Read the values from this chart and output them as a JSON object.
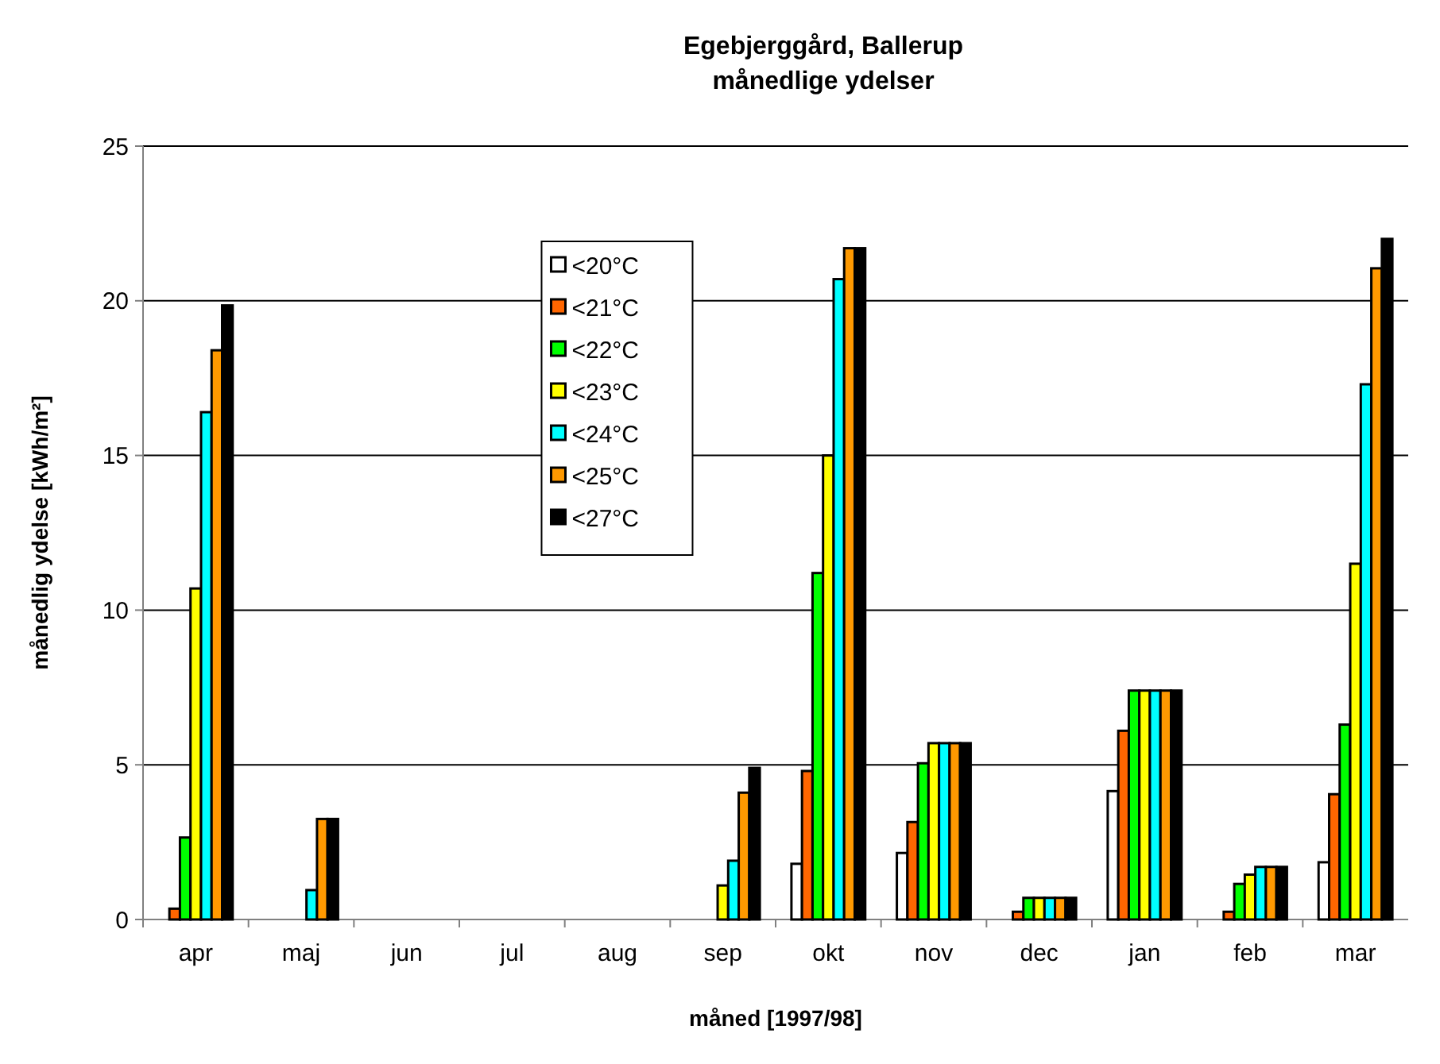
{
  "chart_data": {
    "type": "bar",
    "title": "Egebjerggård, Ballerup\nmånedlige ydelser",
    "xlabel": "måned [1997/98]",
    "ylabel": "månedlig ydelse [kWh/m²]",
    "categories": [
      "apr",
      "maj",
      "jun",
      "jul",
      "aug",
      "sep",
      "okt",
      "nov",
      "dec",
      "jan",
      "feb",
      "mar"
    ],
    "series": [
      {
        "name": "<20°C",
        "color": "#ffffff",
        "values": [
          0,
          0,
          0,
          0,
          0,
          0,
          1.8,
          2.15,
          0,
          4.15,
          0,
          1.85
        ]
      },
      {
        "name": "<21°C",
        "color": "#ff6600",
        "values": [
          0.35,
          0,
          0,
          0,
          0,
          0,
          4.8,
          3.15,
          0.25,
          6.1,
          0.25,
          4.05
        ]
      },
      {
        "name": "<22°C",
        "color": "#00ff00",
        "values": [
          2.65,
          0,
          0,
          0,
          0,
          0,
          11.2,
          5.05,
          0.7,
          7.4,
          1.15,
          6.3
        ]
      },
      {
        "name": "<23°C",
        "color": "#ffff00",
        "values": [
          10.7,
          0,
          0,
          0,
          0,
          1.1,
          15.0,
          5.7,
          0.7,
          7.4,
          1.45,
          11.5
        ]
      },
      {
        "name": "<24°C",
        "color": "#00ffff",
        "values": [
          16.4,
          0.95,
          0,
          0,
          0,
          1.9,
          20.7,
          5.7,
          0.7,
          7.4,
          1.7,
          17.3
        ]
      },
      {
        "name": "<25°C",
        "color": "#ff9900",
        "values": [
          18.4,
          3.25,
          0,
          0,
          0,
          4.1,
          21.7,
          5.7,
          0.7,
          7.4,
          1.7,
          21.05
        ]
      },
      {
        "name": "<27°C",
        "color": "#000000",
        "values": [
          19.85,
          3.25,
          0,
          0,
          0,
          4.9,
          21.7,
          5.7,
          0.7,
          7.4,
          1.7,
          22.0
        ]
      }
    ],
    "ylim": [
      0,
      25
    ],
    "yticks": [
      0,
      5,
      10,
      15,
      20,
      25
    ],
    "grid": "y",
    "legend": "top"
  }
}
